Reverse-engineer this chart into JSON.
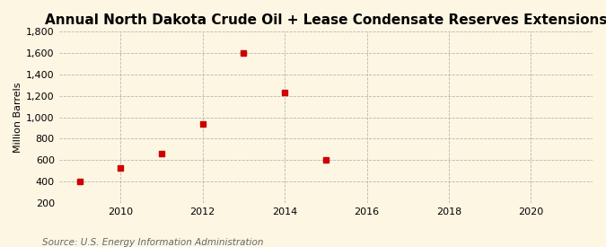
{
  "title": "Annual North Dakota Crude Oil + Lease Condensate Reserves Extensions",
  "ylabel": "Million Barrels",
  "source": "Source: U.S. Energy Information Administration",
  "years": [
    2009,
    2010,
    2011,
    2012,
    2013,
    2014,
    2015
  ],
  "values": [
    400,
    530,
    665,
    940,
    1600,
    1235,
    600
  ],
  "marker_color": "#cc0000",
  "marker_size": 4,
  "xlim": [
    2008.5,
    2021.5
  ],
  "ylim": [
    200,
    1800
  ],
  "yticks": [
    200,
    400,
    600,
    800,
    1000,
    1200,
    1400,
    1600,
    1800
  ],
  "xticks": [
    2010,
    2012,
    2014,
    2016,
    2018,
    2020
  ],
  "background_color": "#fdf6e3",
  "grid_color": "#b0b0b0",
  "title_fontsize": 11,
  "label_fontsize": 8,
  "tick_fontsize": 8,
  "source_fontsize": 7.5
}
